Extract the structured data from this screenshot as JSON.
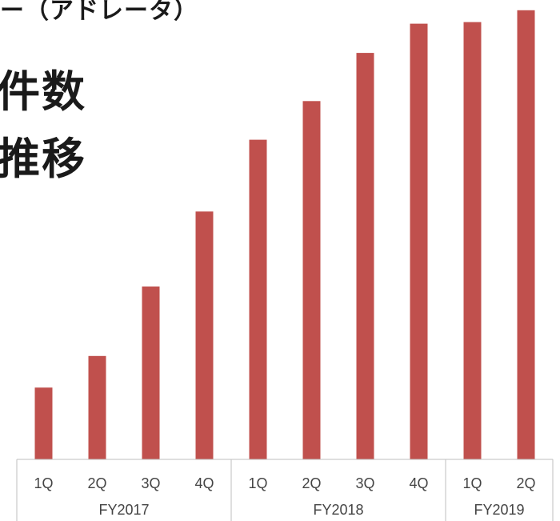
{
  "heading": {
    "top_text": "ー（アドレータ）",
    "line1": "件数",
    "line2": "推移"
  },
  "chart_data": {
    "type": "bar",
    "categories": [
      "1Q",
      "2Q",
      "3Q",
      "4Q",
      "1Q",
      "2Q",
      "3Q",
      "4Q",
      "1Q",
      "2Q"
    ],
    "groups": [
      {
        "label": "FY2017",
        "count": 4
      },
      {
        "label": "FY2018",
        "count": 4
      },
      {
        "label": "FY2019",
        "count": 2
      }
    ],
    "values": [
      9.1,
      13.1,
      21.9,
      31.4,
      40.5,
      45.4,
      51.5,
      55.2,
      55.4,
      56.9
    ],
    "ylim": [
      0,
      58
    ],
    "bar_color": "#c0504d",
    "axis_color": "#bfbfbf",
    "grid": false
  }
}
